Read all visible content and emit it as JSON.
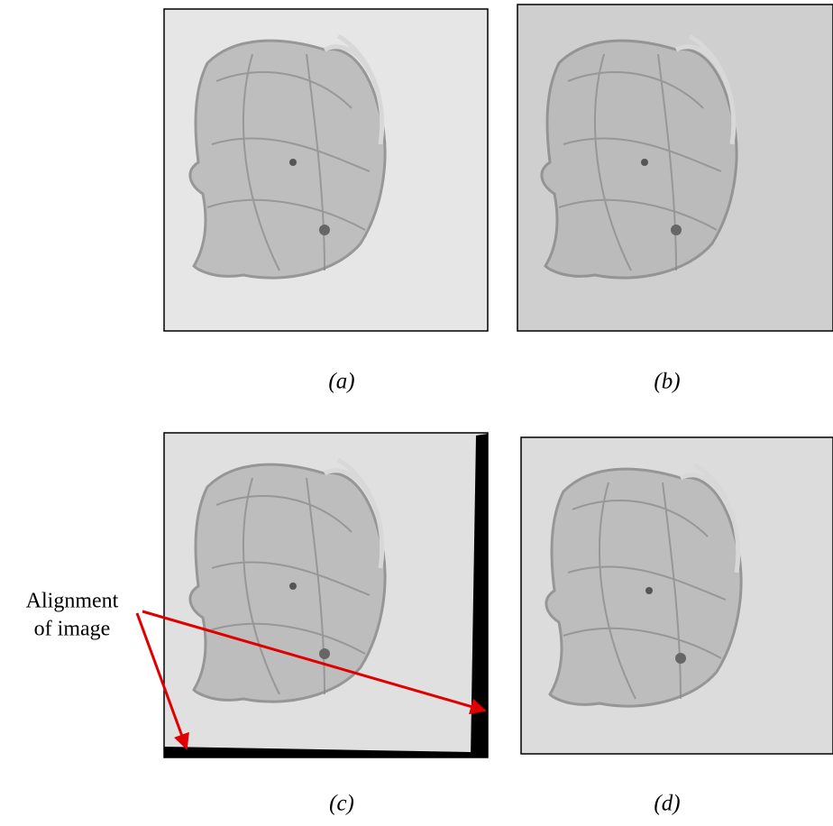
{
  "panels": [
    {
      "caption": "(a)"
    },
    {
      "caption": "(b)"
    },
    {
      "caption": "(c)"
    },
    {
      "caption": "(d)"
    }
  ],
  "annotation": {
    "lines": [
      "Alignment",
      "of image"
    ]
  }
}
